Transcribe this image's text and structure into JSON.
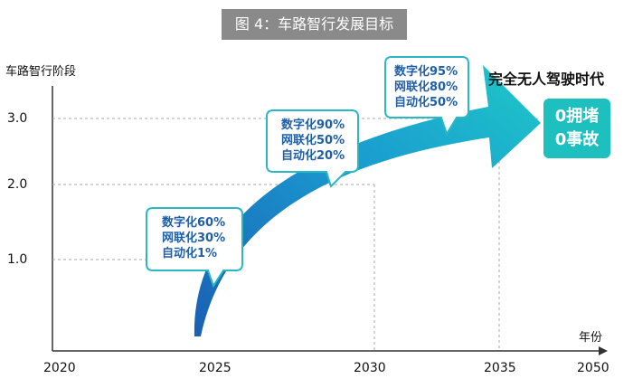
{
  "banner": "图 4：车路智行发展目标",
  "y_axis": {
    "label": "车路智行阶段",
    "ticks": [
      "3.0",
      "2.0",
      "1.0"
    ]
  },
  "x_axis": {
    "label": "年份",
    "ticks": [
      "2020",
      "2025",
      "2030",
      "2035",
      "2050"
    ]
  },
  "stages": [
    {
      "year": "2025",
      "lines": [
        "数字化60%",
        "网联化30%",
        "自动化1%"
      ]
    },
    {
      "year": "2030",
      "lines": [
        "数字化90%",
        "网联化50%",
        "自动化20%"
      ]
    },
    {
      "year": "2035",
      "lines": [
        "数字化95%",
        "网联化80%",
        "自动化50%"
      ]
    }
  ],
  "goal": {
    "title": "完全无人驾驶时代",
    "lines": [
      "0拥堵",
      "0事故"
    ]
  },
  "colors": {
    "arrow_start": "#1a5fb4",
    "arrow_end": "#1ec8c8",
    "bubble_border": "#2ab8c4",
    "bubble_text": "#1f5fa8",
    "goal_box": "#1dbfbf"
  }
}
